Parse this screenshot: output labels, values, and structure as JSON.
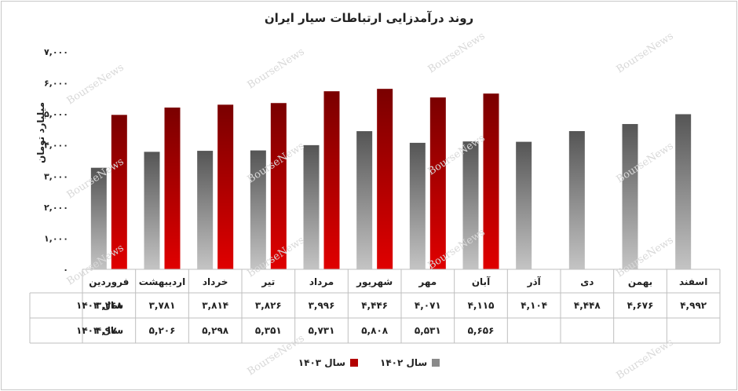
{
  "chart_data": {
    "type": "bar",
    "title": "روند درآمدزایی ارتباطات سیار ایران",
    "ylabel": "میلیارد تومان",
    "ylim": [
      0,
      7000
    ],
    "yticks": [
      "۰",
      "۱,۰۰۰",
      "۲,۰۰۰",
      "۳,۰۰۰",
      "۴,۰۰۰",
      "۵,۰۰۰",
      "۶,۰۰۰",
      "۷,۰۰۰"
    ],
    "categories": [
      "فروردین",
      "اردیبهشت",
      "خرداد",
      "تیر",
      "مرداد",
      "شهریور",
      "مهر",
      "آبان",
      "آذر",
      "دی",
      "بهمن",
      "اسفند"
    ],
    "series": [
      {
        "name": "سال ۱۴۰۲",
        "color": "#8a8a8a",
        "values": [
          3268,
          3781,
          3814,
          3826,
          3996,
          4446,
          4071,
          4115,
          4104,
          4448,
          4676,
          4992
        ],
        "labels": [
          "۳,۲۶۸",
          "۳,۷۸۱",
          "۳,۸۱۴",
          "۳,۸۲۶",
          "۳,۹۹۶",
          "۴,۴۴۶",
          "۴,۰۷۱",
          "۴,۱۱۵",
          "۴,۱۰۴",
          "۴,۴۴۸",
          "۴,۶۷۶",
          "۴,۹۹۲"
        ]
      },
      {
        "name": "سال ۱۴۰۳",
        "color": "#b30000",
        "values": [
          4970,
          5206,
          5298,
          5351,
          5731,
          5808,
          5531,
          5656,
          null,
          null,
          null,
          null
        ],
        "labels": [
          "۴,۹۷۰",
          "۵,۲۰۶",
          "۵,۲۹۸",
          "۵,۳۵۱",
          "۵,۷۳۱",
          "۵,۸۰۸",
          "۵,۵۳۱",
          "۵,۶۵۶",
          "",
          "",
          "",
          ""
        ]
      }
    ],
    "legend_position": "bottom",
    "grid": false,
    "data_table": true
  },
  "watermark": "BourseNews"
}
